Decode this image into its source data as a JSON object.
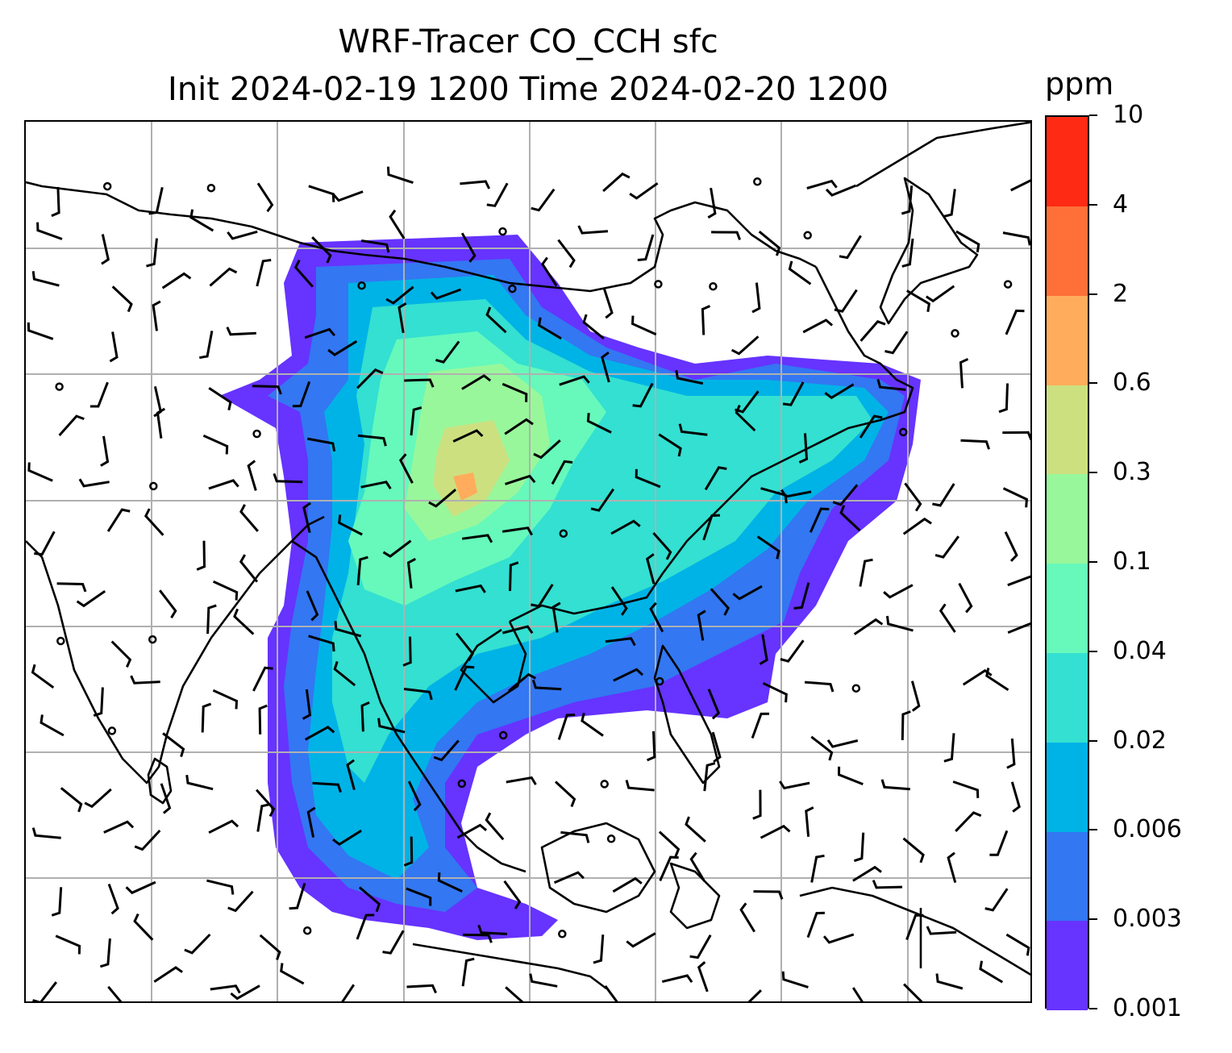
{
  "title": {
    "line1": "WRF-Tracer CO_CCH sfc",
    "line2": "Init 2024-02-19 1200 Time 2024-02-20 1200"
  },
  "colorbar": {
    "unit": "ppm",
    "tick_labels": [
      "0.001",
      "0.003",
      "0.006",
      "0.02",
      "0.04",
      "0.1",
      "0.3",
      "0.6",
      "2",
      "4",
      "10"
    ],
    "colors": [
      "#6633ff",
      "#3377f2",
      "#00b3e6",
      "#33e0d1",
      "#66f9bb",
      "#99f79b",
      "#cce080",
      "#ffad5c",
      "#ff7038",
      "#ff2a14"
    ]
  },
  "map": {
    "gridlines": true,
    "gridline_color": "#b0b0b0",
    "coastline_color": "#000000",
    "wind_barb_color": "#000000",
    "field": "CO_CCH surface tracer concentration",
    "plume_levels": {
      "outer": "#6633ff",
      "level2": "#3377f2",
      "level3": "#00b3e6",
      "level4": "#33e0d1",
      "level5": "#66f9bb",
      "level6": "#99f79b",
      "core": "#cce080",
      "peak": "#ffad5c"
    }
  }
}
